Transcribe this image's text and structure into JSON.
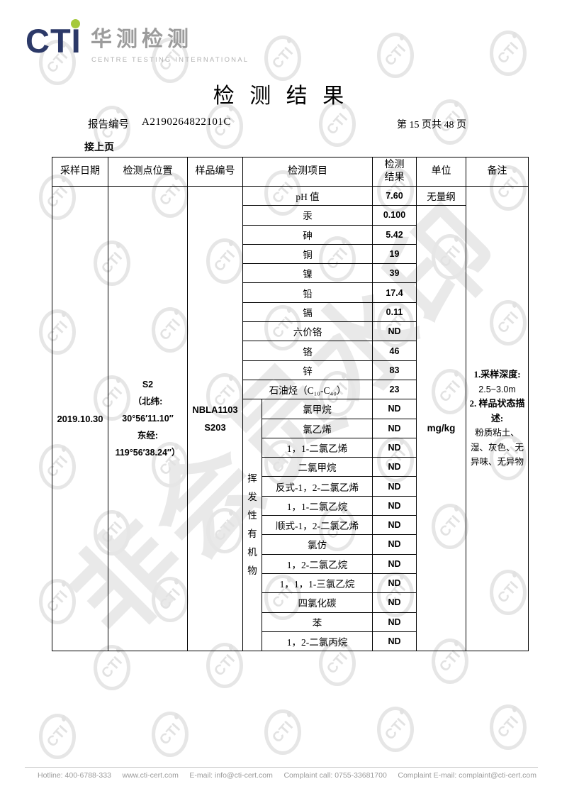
{
  "brand": {
    "logo_text": "CTI",
    "logo_cn": "华测检测",
    "logo_sub": "CENTRE TESTING INTERNATIONAL"
  },
  "title": "检 测 结 果",
  "report": {
    "label": "报告编号",
    "number": "A2190264822101C",
    "page_info": "第 15 页共 48 页",
    "continued": "接上页"
  },
  "watermark": {
    "big_text": "非会员水印",
    "small_text": "CTI"
  },
  "table": {
    "headers": {
      "date": "采样日期",
      "location": "检测点位置",
      "sample_no": "样品编号",
      "item": "检测项目",
      "result_line1": "检测",
      "result_line2": "结果",
      "unit": "单位",
      "remark": "备注"
    },
    "sample": {
      "date": "2019.10.30",
      "location_lines": [
        "S2",
        "（北纬:",
        "30°56′11.10″",
        "东经:",
        "119°56′38.24″）"
      ],
      "sample_no_lines": [
        "NBLA1103",
        "S203"
      ]
    },
    "voc_label": "挥发性有机物",
    "units": {
      "ph": "无量纲",
      "others": "mg/kg"
    },
    "rows": [
      {
        "name": "pH 值",
        "result": "7.60",
        "group": "general"
      },
      {
        "name": "汞",
        "result": "0.100",
        "group": "general"
      },
      {
        "name": "砷",
        "result": "5.42",
        "group": "general"
      },
      {
        "name": "铜",
        "result": "19",
        "group": "general"
      },
      {
        "name": "镍",
        "result": "39",
        "group": "general"
      },
      {
        "name": "铅",
        "result": "17.4",
        "group": "general"
      },
      {
        "name": "镉",
        "result": "0.11",
        "group": "general"
      },
      {
        "name": "六价铬",
        "result": "ND",
        "group": "general"
      },
      {
        "name": "铬",
        "result": "46",
        "group": "general"
      },
      {
        "name": "锌",
        "result": "83",
        "group": "general"
      },
      {
        "name": "石油烃（C₁₀-C₄₀）",
        "result": "23",
        "group": "general"
      },
      {
        "name": "氯甲烷",
        "result": "ND",
        "group": "voc"
      },
      {
        "name": "氯乙烯",
        "result": "ND",
        "group": "voc"
      },
      {
        "name": "1，1-二氯乙烯",
        "result": "ND",
        "group": "voc"
      },
      {
        "name": "二氯甲烷",
        "result": "ND",
        "group": "voc"
      },
      {
        "name": "反式-1，2-二氯乙烯",
        "result": "ND",
        "group": "voc"
      },
      {
        "name": "1，1-二氯乙烷",
        "result": "ND",
        "group": "voc"
      },
      {
        "name": "顺式-1，2-二氯乙烯",
        "result": "ND",
        "group": "voc"
      },
      {
        "name": "氯仿",
        "result": "ND",
        "group": "voc"
      },
      {
        "name": "1，2-二氯乙烷",
        "result": "ND",
        "group": "voc"
      },
      {
        "name": "1，1，1-三氯乙烷",
        "result": "ND",
        "group": "voc"
      },
      {
        "name": "四氯化碳",
        "result": "ND",
        "group": "voc"
      },
      {
        "name": "苯",
        "result": "ND",
        "group": "voc"
      },
      {
        "name": "1，2-二氯丙烷",
        "result": "ND",
        "group": "voc"
      }
    ],
    "remark": {
      "lines": [
        {
          "text": "1.采样深度:",
          "bold": true,
          "sans": false
        },
        {
          "text": "2.5~3.0m",
          "bold": false,
          "sans": true
        },
        {
          "text": "2. 样品状态描述:",
          "bold": true,
          "sans": false
        },
        {
          "text": "粉质粘土、湿、灰色、无异味、无异物",
          "bold": false,
          "sans": false
        }
      ]
    }
  },
  "footer": {
    "items": [
      "Hotline: 400-6788-333",
      "www.cti-cert.com",
      "E-mail: info@cti-cert.com",
      "Complaint call: 0755-33681700",
      "Complaint E-mail: complaint@cti-cert.com"
    ]
  }
}
